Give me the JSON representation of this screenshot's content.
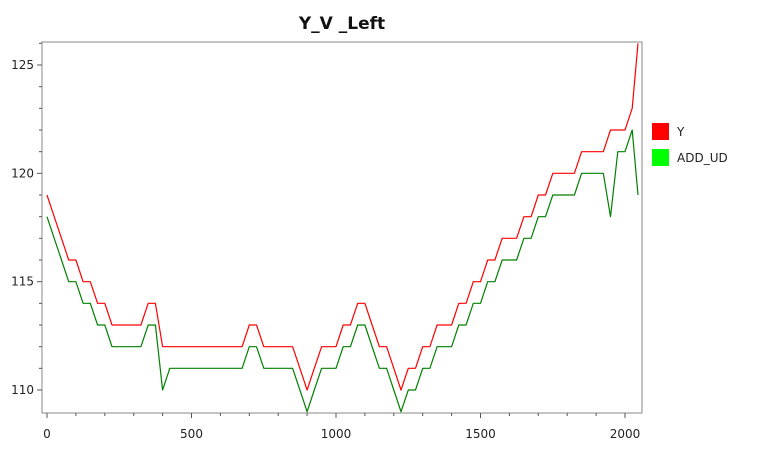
{
  "chart_data": {
    "type": "line",
    "title": "Y_V _Left",
    "xlabel": "",
    "ylabel": "",
    "xlim": [
      0,
      2050
    ],
    "ylim": [
      109,
      126
    ],
    "xticks": [
      0,
      500,
      1000,
      1500,
      2000
    ],
    "yticks": [
      110,
      115,
      120,
      125
    ],
    "grid": false,
    "legend_position": "right",
    "series": [
      {
        "name": "Y",
        "color": "#ff0000",
        "x": [
          0,
          25,
          50,
          75,
          100,
          125,
          150,
          175,
          200,
          225,
          250,
          275,
          300,
          325,
          350,
          375,
          400,
          425,
          450,
          475,
          500,
          525,
          550,
          575,
          600,
          625,
          650,
          675,
          700,
          725,
          750,
          775,
          800,
          825,
          850,
          875,
          900,
          925,
          950,
          975,
          1000,
          1025,
          1050,
          1075,
          1100,
          1125,
          1150,
          1175,
          1200,
          1225,
          1250,
          1275,
          1300,
          1325,
          1350,
          1375,
          1400,
          1425,
          1450,
          1475,
          1500,
          1525,
          1550,
          1575,
          1600,
          1625,
          1650,
          1675,
          1700,
          1725,
          1750,
          1775,
          1800,
          1825,
          1850,
          1875,
          1900,
          1925,
          1950,
          1975,
          2000,
          2025,
          2045
        ],
        "y": [
          119,
          118,
          117,
          116,
          116,
          115,
          115,
          114,
          114,
          113,
          113,
          113,
          113,
          113,
          114,
          114,
          112,
          112,
          112,
          112,
          112,
          112,
          112,
          112,
          112,
          112,
          112,
          112,
          113,
          113,
          112,
          112,
          112,
          112,
          112,
          111,
          110,
          111,
          112,
          112,
          112,
          113,
          113,
          114,
          114,
          113,
          112,
          112,
          111,
          110,
          111,
          111,
          112,
          112,
          113,
          113,
          113,
          114,
          114,
          115,
          115,
          116,
          116,
          117,
          117,
          117,
          118,
          118,
          119,
          119,
          120,
          120,
          120,
          120,
          121,
          121,
          121,
          121,
          122,
          122,
          122,
          123,
          126
        ]
      },
      {
        "name": "ADD_UD",
        "color": "#008000",
        "x": [
          0,
          25,
          50,
          75,
          100,
          125,
          150,
          175,
          200,
          225,
          250,
          275,
          300,
          325,
          350,
          375,
          400,
          425,
          450,
          475,
          500,
          525,
          550,
          575,
          600,
          625,
          650,
          675,
          700,
          725,
          750,
          775,
          800,
          825,
          850,
          875,
          900,
          925,
          950,
          975,
          1000,
          1025,
          1050,
          1075,
          1100,
          1125,
          1150,
          1175,
          1200,
          1225,
          1250,
          1275,
          1300,
          1325,
          1350,
          1375,
          1400,
          1425,
          1450,
          1475,
          1500,
          1525,
          1550,
          1575,
          1600,
          1625,
          1650,
          1675,
          1700,
          1725,
          1750,
          1775,
          1800,
          1825,
          1850,
          1875,
          1900,
          1925,
          1950,
          1975,
          2000,
          2025,
          2045
        ],
        "y": [
          118,
          117,
          116,
          115,
          115,
          114,
          114,
          113,
          113,
          112,
          112,
          112,
          112,
          112,
          113,
          113,
          110,
          111,
          111,
          111,
          111,
          111,
          111,
          111,
          111,
          111,
          111,
          111,
          112,
          112,
          111,
          111,
          111,
          111,
          111,
          110,
          109,
          110,
          111,
          111,
          111,
          112,
          112,
          113,
          113,
          112,
          111,
          111,
          110,
          109,
          110,
          110,
          111,
          111,
          112,
          112,
          112,
          113,
          113,
          114,
          114,
          115,
          115,
          116,
          116,
          116,
          117,
          117,
          118,
          118,
          119,
          119,
          119,
          119,
          120,
          120,
          120,
          120,
          118,
          121,
          121,
          122,
          119
        ]
      }
    ]
  }
}
